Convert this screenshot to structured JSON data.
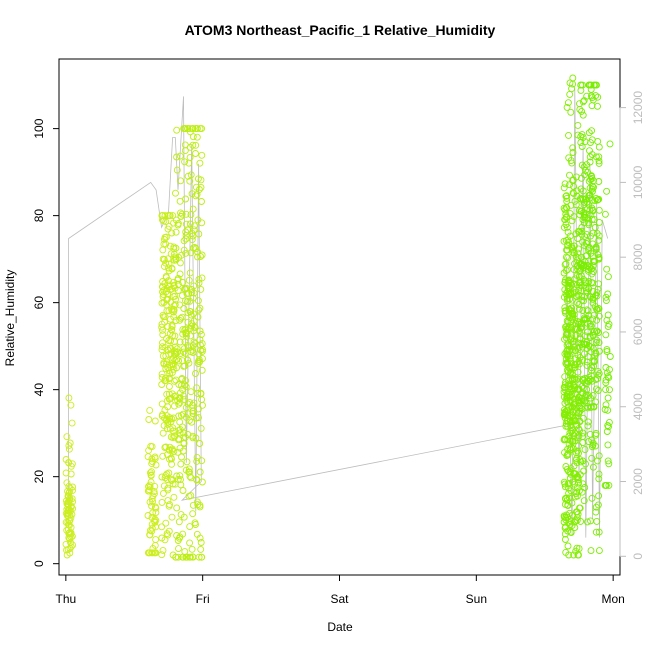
{
  "chart_data": {
    "type": "scatter",
    "title": "ATOM3 Northeast_Pacific_1 Relative_Humidity",
    "xlabel": "Date",
    "ylabel": "Relative_Humidity",
    "x_ticks": [
      "Thu",
      "Fri",
      "Sat",
      "Sun",
      "Mon"
    ],
    "x_range_days": [
      -0.05,
      4.05
    ],
    "ylim": [
      -2.6,
      116
    ],
    "y_ticks": [
      0,
      20,
      40,
      60,
      80,
      100
    ],
    "y2_ticks": [
      0,
      2000,
      4000,
      6000,
      8000,
      10000,
      12000
    ],
    "y2lim": [
      -500,
      13300
    ],
    "grid": false,
    "legend": "none",
    "colors": {
      "early_points": "#ccee22",
      "late_points": "#77ee00",
      "secondary_line": "#bdbdbd",
      "secondary_axis": "#bdbdbd"
    },
    "clusters": [
      {
        "x_start": 0.0,
        "x_end": 0.05,
        "n": 80,
        "ymin": 2,
        "ymax": 43,
        "mean": 12,
        "spread": 6,
        "color": "#ccee22"
      },
      {
        "x_start": 0.6,
        "x_end": 0.66,
        "n": 60,
        "ymin": 2.5,
        "ymax": 38,
        "mean": 14,
        "spread": 9,
        "color": "#cdee1d"
      },
      {
        "x_start": 0.7,
        "x_end": 0.8,
        "n": 220,
        "ymin": 2,
        "ymax": 80,
        "mean": 50,
        "spread": 18,
        "color": "#c6ee18"
      },
      {
        "x_start": 0.8,
        "x_end": 1.0,
        "n": 320,
        "ymin": 1.5,
        "ymax": 100,
        "mean": 50,
        "spread": 28,
        "color": "#bcee12"
      },
      {
        "x_start": 3.64,
        "x_end": 3.76,
        "n": 450,
        "ymin": 2,
        "ymax": 112,
        "mean": 42,
        "spread": 20,
        "color": "#84ee02"
      },
      {
        "x_start": 3.76,
        "x_end": 3.9,
        "n": 350,
        "ymin": 3,
        "ymax": 110,
        "mean": 65,
        "spread": 25,
        "color": "#7aee00"
      },
      {
        "x_start": 3.94,
        "x_end": 3.98,
        "n": 40,
        "ymin": 18,
        "ymax": 98,
        "mean": 45,
        "spread": 22,
        "color": "#77ee00"
      }
    ],
    "secondary_series": {
      "name": "",
      "axis": "right",
      "points": [
        [
          0.02,
          800
        ],
        [
          0.02,
          8500
        ],
        [
          0.62,
          10000
        ],
        [
          0.66,
          9800
        ],
        [
          0.7,
          8800
        ],
        [
          0.75,
          9200
        ],
        [
          0.78,
          11200
        ],
        [
          0.8,
          11200
        ],
        [
          0.82,
          9800
        ],
        [
          0.86,
          12300
        ],
        [
          0.88,
          2500
        ],
        [
          0.92,
          11000
        ],
        [
          0.95,
          1200
        ],
        [
          0.97,
          10500
        ],
        [
          0.99,
          2000
        ],
        [
          0.85,
          1500
        ],
        [
          3.65,
          3500
        ],
        [
          3.66,
          8000
        ],
        [
          3.7,
          600
        ],
        [
          3.72,
          12500
        ],
        [
          3.75,
          2000
        ],
        [
          3.78,
          11000
        ],
        [
          3.8,
          500
        ],
        [
          3.83,
          10500
        ],
        [
          3.85,
          1000
        ],
        [
          3.88,
          9500
        ],
        [
          3.9,
          500
        ],
        [
          3.92,
          9000
        ],
        [
          3.96,
          8500
        ]
      ]
    }
  }
}
